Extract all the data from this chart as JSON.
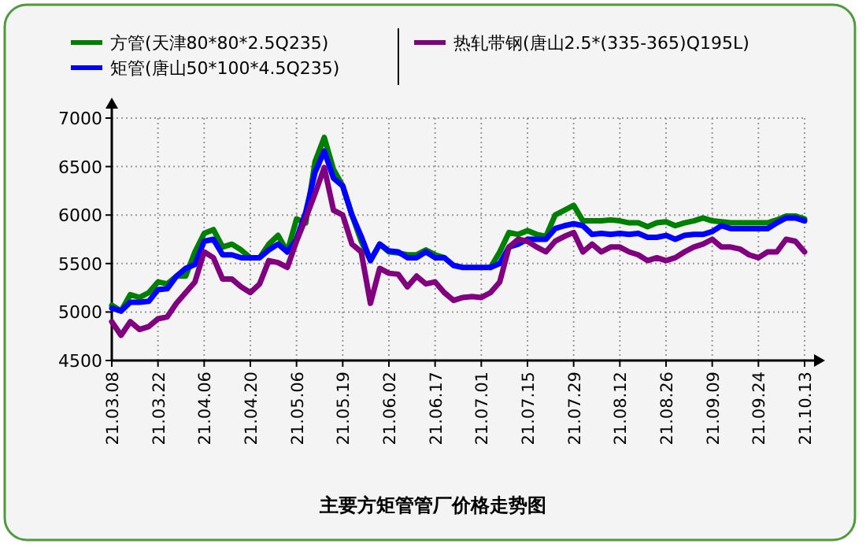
{
  "chart_data": {
    "type": "line",
    "title": "主要方矩管管厂价格走势图",
    "categories": [
      "21.03.08",
      null,
      null,
      null,
      null,
      "21.03.22",
      null,
      null,
      null,
      null,
      "21.04.06",
      null,
      null,
      null,
      null,
      "21.04.20",
      null,
      null,
      null,
      null,
      "21.05.06",
      null,
      null,
      null,
      null,
      "21.05.19",
      null,
      null,
      null,
      null,
      "21.06.02",
      null,
      null,
      null,
      null,
      "21.06.17",
      null,
      null,
      null,
      null,
      "21.07.01",
      null,
      null,
      null,
      null,
      "21.07.15",
      null,
      null,
      null,
      null,
      "21.07.29",
      null,
      null,
      null,
      null,
      "21.08.12",
      null,
      null,
      null,
      null,
      "21.08.26",
      null,
      null,
      null,
      null,
      "21.09.09",
      null,
      null,
      null,
      null,
      "21.09.24",
      null,
      null,
      null,
      null,
      "21.10.13"
    ],
    "series": [
      {
        "name": "方管(天津80*80*2.5Q235)",
        "color": "#008000",
        "values": [
          5070,
          5010,
          5180,
          5150,
          5200,
          5310,
          5290,
          5370,
          5370,
          5620,
          5810,
          5850,
          5670,
          5700,
          5640,
          5560,
          5560,
          5700,
          5790,
          5620,
          5960,
          5920,
          6550,
          6800,
          6470,
          6300,
          6000,
          5730,
          5530,
          5700,
          5620,
          5610,
          5590,
          5590,
          5640,
          5590,
          5560,
          null,
          null,
          null,
          null,
          5460,
          5620,
          5820,
          5800,
          5840,
          5800,
          5780,
          6000,
          6050,
          6100,
          5940,
          5940,
          5940,
          5950,
          5940,
          5920,
          5920,
          5880,
          5920,
          5930,
          5890,
          5920,
          5940,
          5970,
          5940,
          5930,
          5920,
          5920,
          5920,
          5920,
          5920,
          5950,
          5990,
          5990,
          5960
        ]
      },
      {
        "name": "矩管(唐山50*100*4.5Q235)",
        "color": "#0000ff",
        "values": [
          5040,
          5010,
          5100,
          5100,
          5110,
          5230,
          5240,
          5370,
          5450,
          5490,
          5730,
          5750,
          5590,
          5590,
          5560,
          5560,
          5560,
          5640,
          5700,
          5620,
          5750,
          6030,
          6440,
          6660,
          6380,
          6300,
          6000,
          5780,
          5530,
          5700,
          5630,
          5620,
          5560,
          5560,
          5620,
          5560,
          5560,
          5480,
          5460,
          5460,
          5460,
          5460,
          5500,
          5670,
          5700,
          5750,
          5750,
          5750,
          5860,
          5890,
          5910,
          5890,
          5800,
          5810,
          5800,
          5810,
          5800,
          5810,
          5770,
          5770,
          5790,
          5750,
          5790,
          5800,
          5800,
          5830,
          5890,
          5860,
          5860,
          5860,
          5860,
          5860,
          5920,
          5970,
          5970,
          5940
        ]
      },
      {
        "name": "热轧带钢(唐山2.5*(335-365)Q195L)",
        "color": "#800080",
        "values": [
          4900,
          4760,
          4900,
          4820,
          4850,
          4930,
          4950,
          5090,
          5200,
          5310,
          5620,
          5560,
          5340,
          5340,
          5260,
          5200,
          5290,
          5530,
          5510,
          5460,
          5730,
          5970,
          6220,
          6490,
          6050,
          6000,
          5700,
          5620,
          5090,
          5450,
          5400,
          5390,
          5260,
          5370,
          5290,
          5310,
          5200,
          5120,
          5150,
          5160,
          5150,
          5200,
          5310,
          5670,
          5750,
          5730,
          5670,
          5620,
          5730,
          5780,
          5820,
          5620,
          5700,
          5620,
          5670,
          5670,
          5620,
          5590,
          5530,
          5560,
          5530,
          5560,
          5620,
          5670,
          5700,
          5750,
          5670,
          5670,
          5650,
          5590,
          5560,
          5620,
          5620,
          5750,
          5730,
          5620
        ]
      }
    ],
    "ylim": [
      4500,
      7000
    ],
    "yticks": [
      4500,
      5000,
      5500,
      6000,
      6500,
      7000
    ],
    "grid": true,
    "legend": "top",
    "marker": "none",
    "line_style": "solid"
  }
}
